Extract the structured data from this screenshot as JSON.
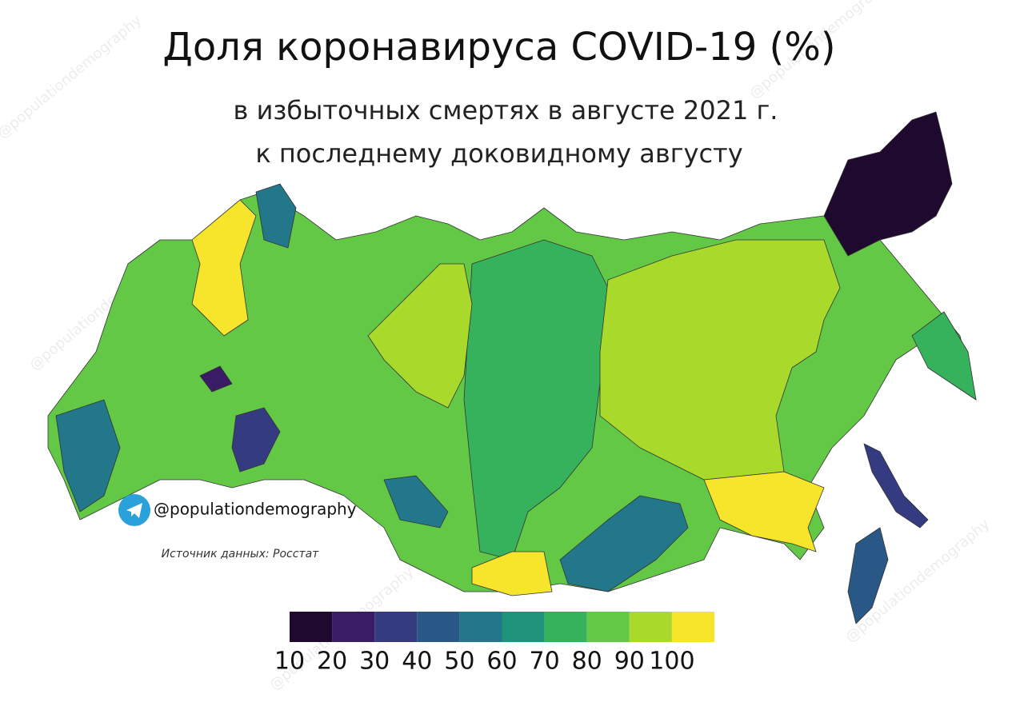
{
  "title": "Доля коронавируса COVID-19 (%)",
  "subtitle": [
    "в избыточных смертях в августе 2021 г.",
    "к последнему доковидному августу"
  ],
  "handle": "@populationdemography",
  "source": "Источник данных: Росстат",
  "legend": {
    "colors": [
      "#1e0a2e",
      "#3a1c66",
      "#343b80",
      "#2a5886",
      "#22778a",
      "#1f947a",
      "#36b25d",
      "#63c846",
      "#a8d92b",
      "#f6e52a"
    ],
    "ticks": [
      10,
      20,
      30,
      40,
      50,
      60,
      70,
      80,
      90,
      100
    ]
  }
}
